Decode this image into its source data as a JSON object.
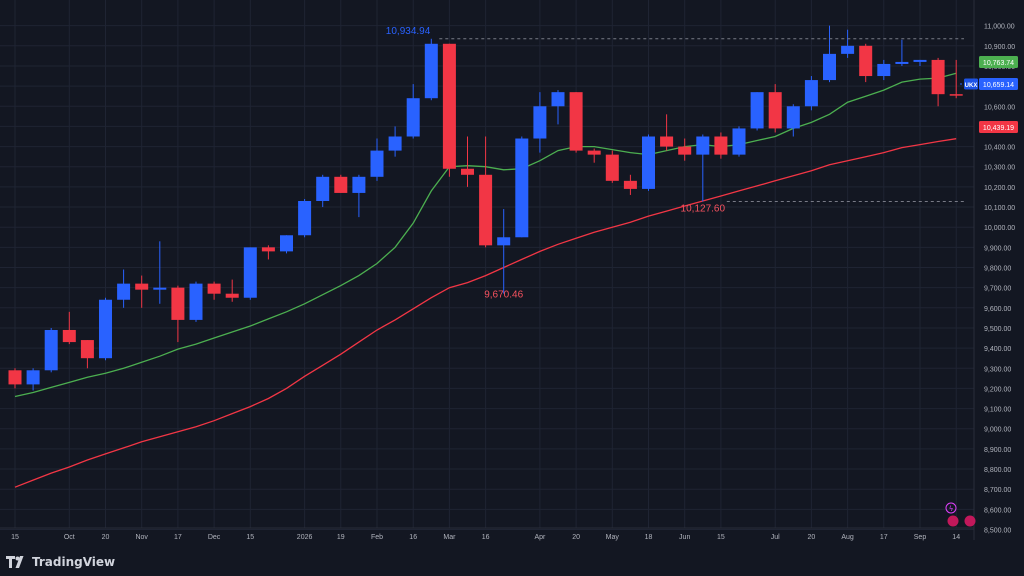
{
  "colors": {
    "background": "#131722",
    "grid": "#1f2433",
    "up": "#2962ff",
    "down": "#f23645",
    "ma_fast": "#4caf50",
    "ma_slow": "#f23645",
    "axis_text": "#b2b5be",
    "dashed": "#787b86"
  },
  "branding": {
    "name": "TradingView",
    "logo_icon": "tradingview-logo-icon"
  },
  "chart_data": {
    "type": "candlestick",
    "ylim": [
      8440,
      11030
    ],
    "grid": true,
    "y_ticks": [
      8500,
      8600,
      8700,
      8800,
      8900,
      9000,
      9100,
      9200,
      9300,
      9400,
      9500,
      9600,
      9700,
      9800,
      9900,
      10000,
      10100,
      10200,
      10300,
      10400,
      10500,
      10600,
      10700,
      10800,
      10900,
      11000
    ],
    "y_tick_labels": [
      "8,500.00",
      "8,600.00",
      "8,700.00",
      "8,800.00",
      "8,900.00",
      "9,000.00",
      "9,100.00",
      "9,200.00",
      "9,300.00",
      "9,400.00",
      "9,500.00",
      "9,600.00",
      "9,700.00",
      "9,800.00",
      "9,900.00",
      "10,000.00",
      "10,100.00",
      "10,200.00",
      "10,300.00",
      "10,400.00",
      "10,500.00",
      "10,600.00",
      "10,700.00",
      "10,800.00",
      "10,900.00",
      "11,000.00"
    ],
    "x_labels": [
      {
        "i": 0,
        "label": "15"
      },
      {
        "i": 3,
        "label": "Oct"
      },
      {
        "i": 5,
        "label": "20"
      },
      {
        "i": 7,
        "label": "Nov"
      },
      {
        "i": 9,
        "label": "17"
      },
      {
        "i": 11,
        "label": "Dec"
      },
      {
        "i": 13,
        "label": "15"
      },
      {
        "i": 16,
        "label": "2026"
      },
      {
        "i": 18,
        "label": "19"
      },
      {
        "i": 20,
        "label": "Feb"
      },
      {
        "i": 22,
        "label": "16"
      },
      {
        "i": 24,
        "label": "Mar"
      },
      {
        "i": 26,
        "label": "16"
      },
      {
        "i": 29,
        "label": "Apr"
      },
      {
        "i": 31,
        "label": "20"
      },
      {
        "i": 33,
        "label": "May"
      },
      {
        "i": 35,
        "label": "18"
      },
      {
        "i": 37,
        "label": "Jun"
      },
      {
        "i": 39,
        "label": "15"
      },
      {
        "i": 42,
        "label": "Jul"
      },
      {
        "i": 44,
        "label": "20"
      },
      {
        "i": 46,
        "label": "Aug"
      },
      {
        "i": 48,
        "label": "17"
      },
      {
        "i": 50,
        "label": "Sep"
      },
      {
        "i": 52,
        "label": "14"
      }
    ],
    "candles": [
      {
        "o": 9290,
        "h": 9300,
        "l": 9200,
        "c": 9220
      },
      {
        "o": 9220,
        "h": 9300,
        "l": 9190,
        "c": 9290
      },
      {
        "o": 9290,
        "h": 9500,
        "l": 9280,
        "c": 9490
      },
      {
        "o": 9490,
        "h": 9580,
        "l": 9420,
        "c": 9430
      },
      {
        "o": 9440,
        "h": 9440,
        "l": 9300,
        "c": 9350
      },
      {
        "o": 9350,
        "h": 9650,
        "l": 9340,
        "c": 9640
      },
      {
        "o": 9640,
        "h": 9790,
        "l": 9600,
        "c": 9720
      },
      {
        "o": 9720,
        "h": 9760,
        "l": 9600,
        "c": 9690
      },
      {
        "o": 9690,
        "h": 9930,
        "l": 9620,
        "c": 9700
      },
      {
        "o": 9700,
        "h": 9710,
        "l": 9430,
        "c": 9540
      },
      {
        "o": 9540,
        "h": 9730,
        "l": 9530,
        "c": 9720
      },
      {
        "o": 9720,
        "h": 9730,
        "l": 9640,
        "c": 9670
      },
      {
        "o": 9670,
        "h": 9740,
        "l": 9630,
        "c": 9650
      },
      {
        "o": 9650,
        "h": 9900,
        "l": 9640,
        "c": 9900
      },
      {
        "o": 9900,
        "h": 9910,
        "l": 9840,
        "c": 9880
      },
      {
        "o": 9880,
        "h": 9960,
        "l": 9870,
        "c": 9960
      },
      {
        "o": 9960,
        "h": 10140,
        "l": 9950,
        "c": 10130
      },
      {
        "o": 10130,
        "h": 10260,
        "l": 10100,
        "c": 10250
      },
      {
        "o": 10250,
        "h": 10260,
        "l": 10170,
        "c": 10170
      },
      {
        "o": 10170,
        "h": 10260,
        "l": 10050,
        "c": 10250
      },
      {
        "o": 10250,
        "h": 10440,
        "l": 10230,
        "c": 10380
      },
      {
        "o": 10380,
        "h": 10500,
        "l": 10350,
        "c": 10450
      },
      {
        "o": 10450,
        "h": 10710,
        "l": 10440,
        "c": 10640
      },
      {
        "o": 10640,
        "h": 10934.94,
        "l": 10630,
        "c": 10910
      },
      {
        "o": 10910,
        "h": 10910,
        "l": 10250,
        "c": 10290
      },
      {
        "o": 10290,
        "h": 10450,
        "l": 10200,
        "c": 10260
      },
      {
        "o": 10260,
        "h": 10450,
        "l": 9900,
        "c": 9910
      },
      {
        "o": 9910,
        "h": 10090,
        "l": 9670.46,
        "c": 9950
      },
      {
        "o": 9950,
        "h": 10450,
        "l": 9950,
        "c": 10440
      },
      {
        "o": 10440,
        "h": 10670,
        "l": 10370,
        "c": 10600
      },
      {
        "o": 10600,
        "h": 10680,
        "l": 10510,
        "c": 10670
      },
      {
        "o": 10670,
        "h": 10670,
        "l": 10370,
        "c": 10380
      },
      {
        "o": 10380,
        "h": 10390,
        "l": 10320,
        "c": 10360
      },
      {
        "o": 10360,
        "h": 10380,
        "l": 10220,
        "c": 10230
      },
      {
        "o": 10230,
        "h": 10260,
        "l": 10160,
        "c": 10190
      },
      {
        "o": 10190,
        "h": 10460,
        "l": 10180,
        "c": 10450
      },
      {
        "o": 10450,
        "h": 10560,
        "l": 10380,
        "c": 10400
      },
      {
        "o": 10400,
        "h": 10440,
        "l": 10330,
        "c": 10360
      },
      {
        "o": 10360,
        "h": 10460,
        "l": 10127.6,
        "c": 10450
      },
      {
        "o": 10450,
        "h": 10470,
        "l": 10340,
        "c": 10360
      },
      {
        "o": 10360,
        "h": 10500,
        "l": 10350,
        "c": 10490
      },
      {
        "o": 10490,
        "h": 10670,
        "l": 10480,
        "c": 10670
      },
      {
        "o": 10670,
        "h": 10710,
        "l": 10470,
        "c": 10490
      },
      {
        "o": 10490,
        "h": 10610,
        "l": 10450,
        "c": 10600
      },
      {
        "o": 10600,
        "h": 10750,
        "l": 10580,
        "c": 10730
      },
      {
        "o": 10730,
        "h": 11000,
        "l": 10720,
        "c": 10860
      },
      {
        "o": 10860,
        "h": 10980,
        "l": 10840,
        "c": 10900
      },
      {
        "o": 10900,
        "h": 10910,
        "l": 10720,
        "c": 10750
      },
      {
        "o": 10750,
        "h": 10830,
        "l": 10730,
        "c": 10810
      },
      {
        "o": 10810,
        "h": 10930,
        "l": 10800,
        "c": 10820
      },
      {
        "o": 10820,
        "h": 10830,
        "l": 10800,
        "c": 10830
      },
      {
        "o": 10830,
        "h": 10840,
        "l": 10600,
        "c": 10660
      },
      {
        "o": 10660,
        "h": 10830,
        "l": 10640,
        "c": 10659.14
      }
    ],
    "ma_fast": [
      9160,
      9180,
      9205,
      9230,
      9255,
      9275,
      9300,
      9330,
      9360,
      9395,
      9420,
      9450,
      9480,
      9510,
      9545,
      9580,
      9620,
      9665,
      9710,
      9760,
      9820,
      9900,
      10020,
      10180,
      10300,
      10305,
      10300,
      10285,
      10290,
      10330,
      10380,
      10400,
      10400,
      10385,
      10370,
      10360,
      10380,
      10400,
      10410,
      10400,
      10410,
      10430,
      10450,
      10490,
      10520,
      10560,
      10620,
      10650,
      10680,
      10720,
      10735,
      10740,
      10763.74
    ],
    "ma_slow": [
      8710,
      8745,
      8780,
      8810,
      8845,
      8875,
      8905,
      8935,
      8960,
      8985,
      9010,
      9040,
      9075,
      9110,
      9150,
      9200,
      9260,
      9315,
      9370,
      9430,
      9490,
      9540,
      9595,
      9650,
      9700,
      9725,
      9760,
      9800,
      9840,
      9880,
      9915,
      9945,
      9975,
      10000,
      10025,
      10055,
      10080,
      10105,
      10130,
      10155,
      10180,
      10205,
      10230,
      10255,
      10280,
      10310,
      10330,
      10350,
      10370,
      10395,
      10410,
      10425,
      10439.19
    ],
    "last_value_labels": [
      {
        "name": "UKX",
        "value": "10,659.14",
        "color": "#2962ff"
      },
      {
        "name": "ma_fast",
        "value": "10,763.74",
        "color": "#4caf50"
      },
      {
        "name": "ma_slow",
        "value": "10,439.19",
        "color": "#f23645"
      }
    ],
    "annotations": [
      {
        "text": "10,934.94",
        "i": 23,
        "value": 10934.94,
        "kind": "high"
      },
      {
        "text": "9,670.46",
        "i": 27,
        "value": 9670.46,
        "kind": "low"
      },
      {
        "text": "10,127.60",
        "i": 38,
        "value": 10127.6,
        "kind": "low"
      }
    ]
  }
}
